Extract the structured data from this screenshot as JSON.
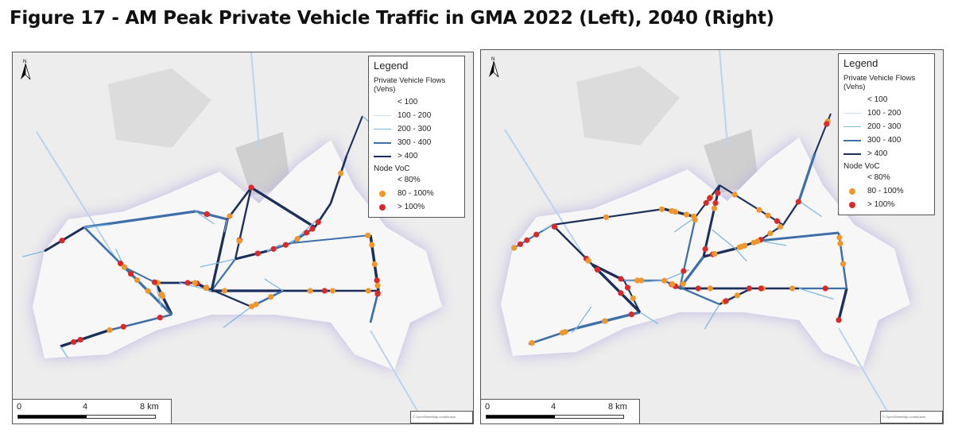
{
  "title": "Figure 17 - AM Peak Private Vehicle Traffic in GMA 2022 (Left), 2040 (Right)",
  "panels": [
    {
      "id": "left",
      "year": "2022"
    },
    {
      "id": "right",
      "year": "2040"
    }
  ],
  "legend": {
    "title": "Legend",
    "flows_title": "Private Vehicle Flows (Vehs)",
    "flows": [
      {
        "label": "< 100",
        "color": "#ffffff"
      },
      {
        "label": "100 - 200",
        "color": "#c9e3f5"
      },
      {
        "label": "200 - 300",
        "color": "#7fb9e2"
      },
      {
        "label": "300 - 400",
        "color": "#3d6fa8"
      },
      {
        "label": "> 400",
        "color": "#1c2f5c"
      }
    ],
    "voc_title": "Node VoC",
    "voc": [
      {
        "label": "< 80%",
        "color": "transparent"
      },
      {
        "label": "80 - 100%",
        "color": "#f0962a"
      },
      {
        "label": "> 100%",
        "color": "#d92a2a"
      }
    ]
  },
  "north_label": "N",
  "scale": {
    "ticks": [
      "0",
      "4",
      "8 km"
    ]
  },
  "attribution": "© OpenStreetMap contributors"
}
